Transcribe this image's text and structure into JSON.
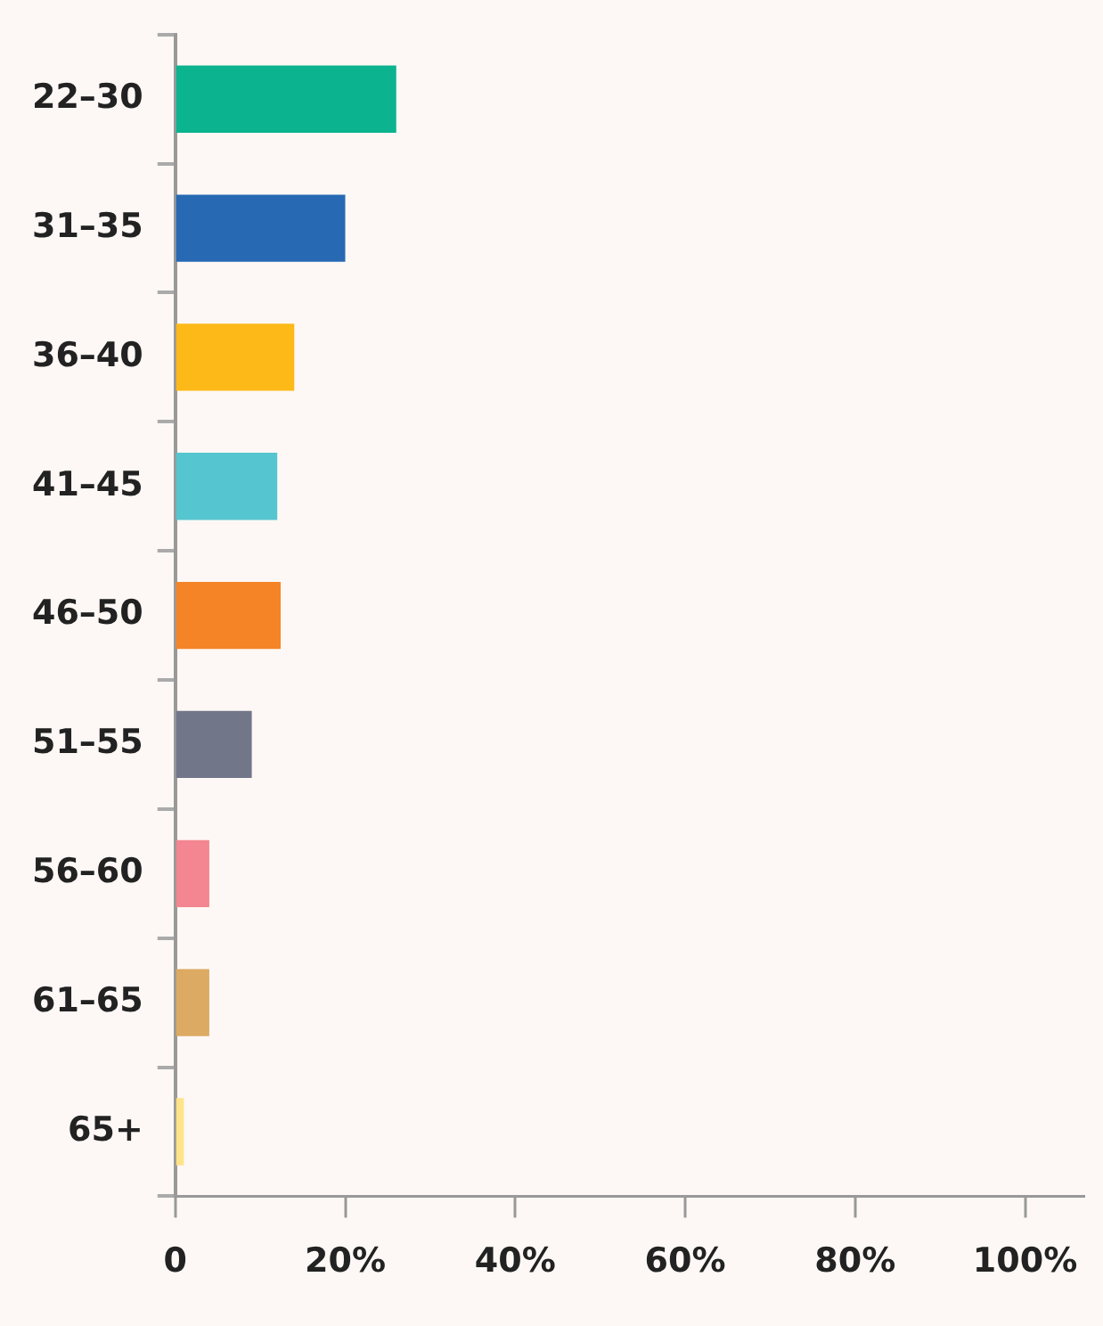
{
  "chart_data": {
    "type": "bar",
    "orientation": "horizontal",
    "categories": [
      "22–30",
      "31–35",
      "36–40",
      "41–45",
      "46–50",
      "51–55",
      "56–60",
      "61–65",
      "65+"
    ],
    "values": [
      26,
      20,
      14,
      12,
      12.4,
      9,
      4,
      4,
      1
    ],
    "colors": [
      "#0bb38e",
      "#2769b3",
      "#fdb918",
      "#55c5d0",
      "#f58426",
      "#727689",
      "#f38690",
      "#dcaa63",
      "#ffe387"
    ],
    "xlim": [
      0,
      107
    ],
    "xticks": [
      0,
      {
        "value": 20,
        "label": "20%"
      },
      {
        "value": 40,
        "label": "40%"
      },
      {
        "value": 60,
        "label": "60%"
      },
      {
        "value": 80,
        "label": "80%"
      },
      {
        "value": 100,
        "label": "100%"
      }
    ],
    "grid": false,
    "legend": false
  }
}
